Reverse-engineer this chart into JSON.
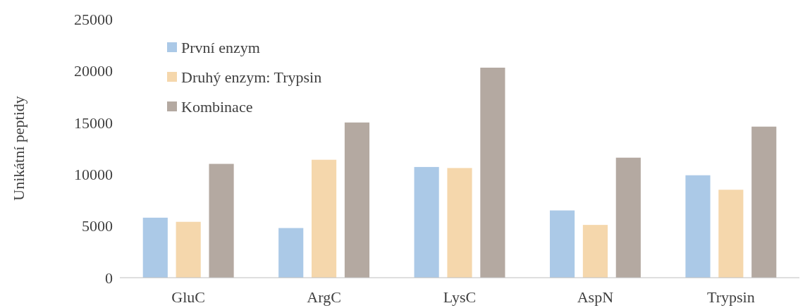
{
  "chart_data": {
    "type": "bar",
    "ylabel": "Unikátní peptidy",
    "categories": [
      "GluC",
      "ArgC",
      "LysC",
      "AspN",
      "Trypsin"
    ],
    "series": [
      {
        "name": "První enzym",
        "color": "#abc9e7",
        "values": [
          5800,
          4800,
          10700,
          6500,
          9900
        ]
      },
      {
        "name": "Druhý enzym: Trypsin",
        "color": "#f5d7ac",
        "values": [
          5400,
          11400,
          10600,
          5100,
          8500
        ]
      },
      {
        "name": "Kombinace",
        "color": "#b4a9a1",
        "values": [
          11000,
          15000,
          20300,
          11600,
          14600
        ]
      }
    ],
    "ylim": [
      0,
      25000
    ],
    "yticks": [
      0,
      5000,
      10000,
      15000,
      20000,
      25000
    ],
    "grid": false,
    "legend": "top left"
  }
}
